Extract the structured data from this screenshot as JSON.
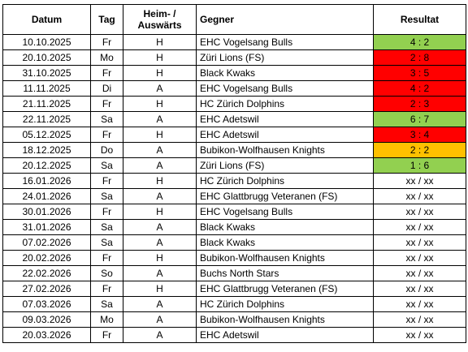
{
  "headers": {
    "date": "Datum",
    "day": "Tag",
    "home_away": "Heim- / Auswärts",
    "opponent": "Gegner",
    "result": "Resultat"
  },
  "rows": [
    {
      "date": "10.10.2025",
      "day": "Fr",
      "ha": "H",
      "opponent": "EHC Vogelsang Bulls",
      "result": "4 : 2",
      "status": "win"
    },
    {
      "date": "20.10.2025",
      "day": "Mo",
      "ha": "H",
      "opponent": "Züri Lions (FS)",
      "result": "2 : 8",
      "status": "loss"
    },
    {
      "date": "31.10.2025",
      "day": "Fr",
      "ha": "H",
      "opponent": "Black Kwaks",
      "result": "3 : 5",
      "status": "loss"
    },
    {
      "date": "11.11.2025",
      "day": "Di",
      "ha": "A",
      "opponent": "EHC Vogelsang Bulls",
      "result": "4 : 2",
      "status": "loss"
    },
    {
      "date": "21.11.2025",
      "day": "Fr",
      "ha": "H",
      "opponent": "HC Zürich Dolphins",
      "result": "2 : 3",
      "status": "loss"
    },
    {
      "date": "22.11.2025",
      "day": "Sa",
      "ha": "A",
      "opponent": "EHC Adetswil",
      "result": "6 : 7",
      "status": "win"
    },
    {
      "date": "05.12.2025",
      "day": "Fr",
      "ha": "H",
      "opponent": "EHC Adetswil",
      "result": "3 : 4",
      "status": "loss"
    },
    {
      "date": "18.12.2025",
      "day": "Do",
      "ha": "A",
      "opponent": "Bubikon-Wolfhausen Knights",
      "result": "2 : 2",
      "status": "draw"
    },
    {
      "date": "20.12.2025",
      "day": "Sa",
      "ha": "A",
      "opponent": "Züri Lions (FS)",
      "result": "1 : 6",
      "status": "win"
    },
    {
      "date": "16.01.2026",
      "day": "Fr",
      "ha": "H",
      "opponent": "HC Zürich Dolphins",
      "result": "xx / xx",
      "status": "pending"
    },
    {
      "date": "24.01.2026",
      "day": "Sa",
      "ha": "A",
      "opponent": "EHC Glattbrugg Veteranen (FS)",
      "result": "xx / xx",
      "status": "pending"
    },
    {
      "date": "30.01.2026",
      "day": "Fr",
      "ha": "H",
      "opponent": "EHC Vogelsang Bulls",
      "result": "xx / xx",
      "status": "pending"
    },
    {
      "date": "31.01.2026",
      "day": "Sa",
      "ha": "A",
      "opponent": "Black Kwaks",
      "result": "xx / xx",
      "status": "pending"
    },
    {
      "date": "07.02.2026",
      "day": "Sa",
      "ha": "A",
      "opponent": "Black Kwaks",
      "result": "xx / xx",
      "status": "pending"
    },
    {
      "date": "20.02.2026",
      "day": "Fr",
      "ha": "H",
      "opponent": "Bubikon-Wolfhausen Knights",
      "result": "xx / xx",
      "status": "pending"
    },
    {
      "date": "22.02.2026",
      "day": "So",
      "ha": "A",
      "opponent": "Buchs North Stars",
      "result": "xx / xx",
      "status": "pending"
    },
    {
      "date": "27.02.2026",
      "day": "Fr",
      "ha": "H",
      "opponent": "EHC Glattbrugg Veteranen (FS)",
      "result": "xx / xx",
      "status": "pending"
    },
    {
      "date": "07.03.2026",
      "day": "Sa",
      "ha": "A",
      "opponent": "HC Zürich Dolphins",
      "result": "xx / xx",
      "status": "pending"
    },
    {
      "date": "09.03.2026",
      "day": "Mo",
      "ha": "A",
      "opponent": "Bubikon-Wolfhausen Knights",
      "result": "xx / xx",
      "status": "pending"
    },
    {
      "date": "20.03.2026",
      "day": "Fr",
      "ha": "A",
      "opponent": "EHC Adetswil",
      "result": "xx / xx",
      "status": "pending"
    }
  ],
  "colors": {
    "win": "#92d050",
    "loss": "#ff0000",
    "draw": "#ffc000",
    "pending": "#ffffff"
  }
}
